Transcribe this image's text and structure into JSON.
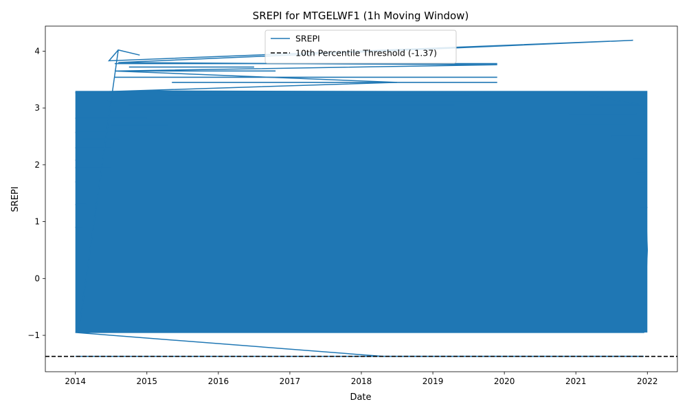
{
  "chart_data": {
    "type": "line",
    "title": "SREPI for MTGELWF1 (1h Moving Window)",
    "xlabel": "Date",
    "ylabel": "SREPI",
    "xlim": [
      2013.58,
      2022.42
    ],
    "ylim": [
      -1.64,
      4.44
    ],
    "x_ticks": [
      2014,
      2015,
      2016,
      2017,
      2018,
      2019,
      2020,
      2021,
      2022
    ],
    "x_tick_labels": [
      "2014",
      "2015",
      "2016",
      "2017",
      "2018",
      "2019",
      "2020",
      "2021",
      "2022"
    ],
    "y_ticks": [
      -1,
      0,
      1,
      2,
      3,
      4
    ],
    "y_tick_labels": [
      "−1",
      "0",
      "1",
      "2",
      "3",
      "4"
    ],
    "grid": false,
    "legend": {
      "placement": "upper center",
      "entries": [
        {
          "label": "SREPI",
          "style": "solid",
          "color": "#1f77b4"
        },
        {
          "label": "10th Percentile Threshold (-1.37)",
          "style": "dashed",
          "color": "#000000"
        }
      ]
    },
    "series": [
      {
        "name": "SREPI",
        "color": "#1f77b4",
        "description_points": {
          "dense_band": {
            "x_range": [
              2014.0,
              2022.0
            ],
            "y_range": [
              -0.95,
              3.3
            ]
          },
          "outline_x": [
            2014.05,
            2014.6,
            2014.9,
            2014.6,
            2014.47,
            2021.8,
            2014.6,
            2017.0,
            2019.9,
            2014.55,
            2018.5,
            2014.0,
            2015.2,
            2020.9,
            2021.95,
            2021.98,
            2021.97,
            2022.0,
            2021.95,
            2021.9,
            2014.0,
            2018.3,
            2021.95
          ],
          "outline_y": [
            -0.9,
            4.02,
            3.93,
            4.02,
            3.83,
            4.19,
            3.8,
            3.78,
            3.76,
            3.65,
            3.45,
            3.27,
            3.3,
            3.28,
            3.05,
            2.2,
            1.5,
            0.5,
            -0.95,
            -0.95,
            -0.95,
            -1.37,
            -1.37
          ]
        }
      },
      {
        "name": "10th Percentile Threshold (-1.37)",
        "color": "#000000",
        "dashed": true,
        "values": [
          -1.37
        ]
      }
    ]
  }
}
